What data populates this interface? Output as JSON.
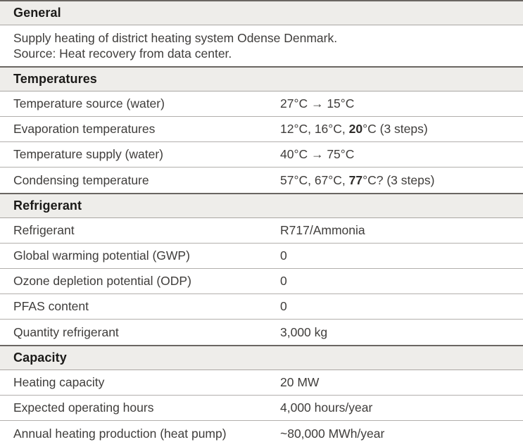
{
  "colors": {
    "section_header_bg": "#eeedea",
    "section_border_dark": "#6a6662",
    "row_border_light": "#b2afac",
    "header_text": "#1b1a18",
    "body_text": "#3f3d3b"
  },
  "table": {
    "sections": [
      {
        "title": "General",
        "paragraph": {
          "line1": "Supply heating of district heating system Odense Denmark.",
          "line2": "Source: Heat recovery from data center."
        }
      },
      {
        "title": "Temperatures",
        "rows": [
          {
            "label": "Temperature source (water)",
            "value": {
              "pre": "27°C → 15°C",
              "bold": "",
              "post": ""
            }
          },
          {
            "label": "Evaporation temperatures",
            "value": {
              "pre": "12°C, 16°C, ",
              "bold": "20",
              "post": "°C (3 steps)"
            }
          },
          {
            "label": "Temperature supply (water)",
            "value": {
              "pre": "40°C → 75°C",
              "bold": "",
              "post": ""
            }
          },
          {
            "label": "Condensing temperature",
            "value": {
              "pre": "57°C, 67°C, ",
              "bold": "77",
              "post": "°C? (3 steps)"
            }
          }
        ]
      },
      {
        "title": "Refrigerant",
        "rows": [
          {
            "label": "Refrigerant",
            "value": {
              "pre": "R717/Ammonia",
              "bold": "",
              "post": ""
            }
          },
          {
            "label": "Global warming potential (GWP)",
            "value": {
              "pre": "0",
              "bold": "",
              "post": ""
            }
          },
          {
            "label": "Ozone depletion potential (ODP)",
            "value": {
              "pre": "0",
              "bold": "",
              "post": ""
            }
          },
          {
            "label": "PFAS content",
            "value": {
              "pre": "0",
              "bold": "",
              "post": ""
            }
          },
          {
            "label": "Quantity refrigerant",
            "value": {
              "pre": "3,000 kg",
              "bold": "",
              "post": ""
            }
          }
        ]
      },
      {
        "title": "Capacity",
        "rows": [
          {
            "label": "Heating capacity",
            "value": {
              "pre": "20 MW",
              "bold": "",
              "post": ""
            }
          },
          {
            "label": "Expected operating hours",
            "value": {
              "pre": "4,000 hours/year",
              "bold": "",
              "post": ""
            }
          },
          {
            "label": "Annual heating production (heat pump)",
            "value": {
              "pre": "~80,000 MWh/year",
              "bold": "",
              "post": ""
            }
          }
        ]
      }
    ]
  }
}
